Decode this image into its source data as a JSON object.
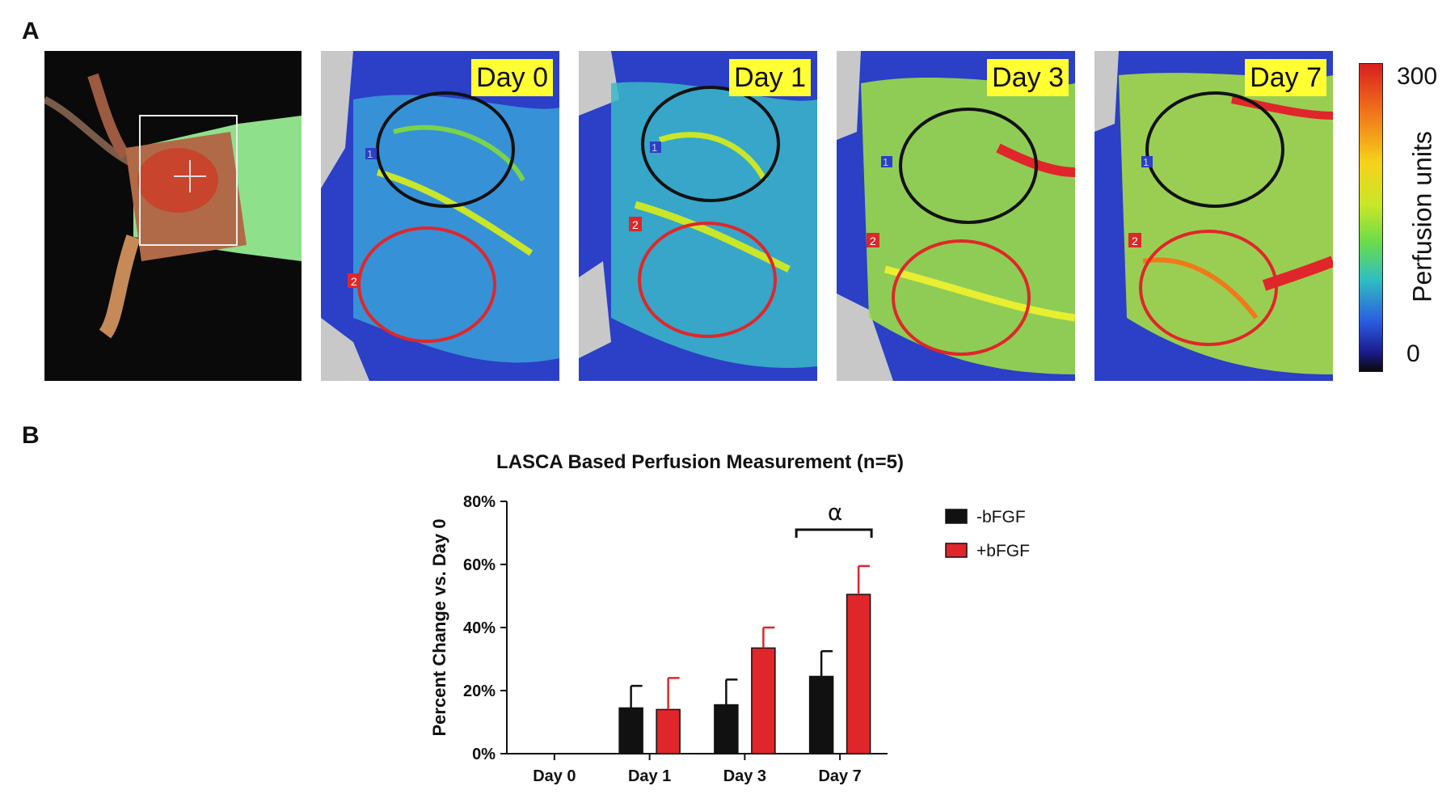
{
  "panel_a": {
    "letter": "A",
    "photo_panel": "mouse-dorsal-photo",
    "images": [
      {
        "day": "Day 0"
      },
      {
        "day": "Day 1"
      },
      {
        "day": "Day 3"
      },
      {
        "day": "Day 7"
      }
    ],
    "roi_labels": [
      "1",
      "2"
    ],
    "colorbar": {
      "title": "Perfusion units",
      "max": "300",
      "min": "0"
    }
  },
  "panel_b": {
    "letter": "B"
  },
  "colors": {
    "minus_bfgf": "#111111",
    "plus_bfgf": "#e0262a",
    "roi_1": "#111111",
    "roi_2": "#e0262a"
  },
  "chart_data": {
    "type": "bar",
    "title": "LASCA Based Perfusion Measurement (n=5)",
    "xlabel": "",
    "ylabel": "Percent Change vs. Day 0",
    "categories": [
      "Day 0",
      "Day 1",
      "Day 3",
      "Day 7"
    ],
    "ylim": [
      0,
      80
    ],
    "yticks": [
      "0%",
      "20%",
      "40%",
      "60%",
      "80%"
    ],
    "grid": false,
    "legend": "right",
    "series": [
      {
        "name": "-bFGF",
        "values": [
          0,
          14.5,
          15.5,
          24.5
        ],
        "errors": [
          0,
          7,
          8,
          8
        ]
      },
      {
        "name": "+bFGF",
        "values": [
          0,
          14,
          33.5,
          50.5
        ],
        "errors": [
          0,
          10,
          6.5,
          9
        ]
      }
    ],
    "annotation": {
      "text": "α",
      "category": "Day 7"
    }
  }
}
